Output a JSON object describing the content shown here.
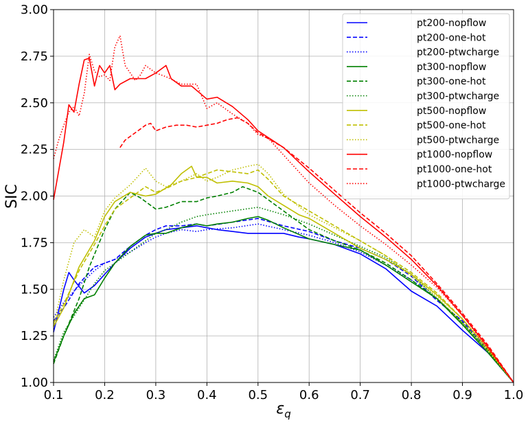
{
  "chart_data": {
    "type": "line",
    "title": "",
    "xlabel": "ε",
    "xlabel_sub": "q",
    "ylabel": "SIC",
    "xlim": [
      0.1,
      1.0
    ],
    "ylim": [
      1.0,
      3.0
    ],
    "xticks": [
      0.1,
      0.2,
      0.3,
      0.4,
      0.5,
      0.6,
      0.7,
      0.8,
      0.9,
      1.0
    ],
    "xtick_labels": [
      "0.1",
      "0.2",
      "0.3",
      "0.4",
      "0.5",
      "0.6",
      "0.7",
      "0.8",
      "0.9",
      "1.0"
    ],
    "yticks": [
      1.0,
      1.25,
      1.5,
      1.75,
      2.0,
      2.25,
      2.5,
      2.75,
      3.0
    ],
    "ytick_labels": [
      "1.00",
      "1.25",
      "1.50",
      "1.75",
      "2.00",
      "2.25",
      "2.50",
      "2.75",
      "3.00"
    ],
    "grid": true,
    "legend_position": "top-right",
    "series": [
      {
        "name": "pt200-nopflow",
        "color": "#0000ff",
        "dash": "solid",
        "x": [
          0.1,
          0.12,
          0.13,
          0.14,
          0.16,
          0.18,
          0.2,
          0.22,
          0.25,
          0.28,
          0.3,
          0.32,
          0.35,
          0.38,
          0.4,
          0.42,
          0.45,
          0.48,
          0.5,
          0.52,
          0.55,
          0.58,
          0.6,
          0.65,
          0.7,
          0.75,
          0.8,
          0.85,
          0.9,
          0.95,
          1.0
        ],
        "y": [
          1.27,
          1.5,
          1.59,
          1.55,
          1.48,
          1.52,
          1.58,
          1.64,
          1.72,
          1.78,
          1.8,
          1.82,
          1.83,
          1.84,
          1.83,
          1.82,
          1.81,
          1.8,
          1.8,
          1.8,
          1.8,
          1.78,
          1.77,
          1.74,
          1.69,
          1.61,
          1.49,
          1.41,
          1.28,
          1.16,
          1.0
        ]
      },
      {
        "name": "pt200-one-hot",
        "color": "#0000ff",
        "dash": "dashed",
        "x": [
          0.1,
          0.12,
          0.15,
          0.18,
          0.2,
          0.22,
          0.25,
          0.28,
          0.3,
          0.32,
          0.35,
          0.38,
          0.4,
          0.45,
          0.5,
          0.55,
          0.6,
          0.65,
          0.7,
          0.75,
          0.8,
          0.85,
          0.9,
          0.95,
          1.0
        ],
        "y": [
          1.33,
          1.4,
          1.53,
          1.62,
          1.64,
          1.66,
          1.73,
          1.79,
          1.82,
          1.84,
          1.84,
          1.85,
          1.84,
          1.86,
          1.88,
          1.84,
          1.81,
          1.76,
          1.72,
          1.66,
          1.57,
          1.44,
          1.33,
          1.18,
          1.0
        ]
      },
      {
        "name": "pt200-ptwcharge",
        "color": "#0000ff",
        "dash": "dotted",
        "x": [
          0.1,
          0.12,
          0.15,
          0.18,
          0.2,
          0.22,
          0.25,
          0.28,
          0.3,
          0.32,
          0.35,
          0.38,
          0.4,
          0.45,
          0.5,
          0.55,
          0.6,
          0.65,
          0.7,
          0.75,
          0.8,
          0.85,
          0.9,
          0.95,
          1.0
        ],
        "y": [
          1.35,
          1.43,
          1.52,
          1.6,
          1.64,
          1.66,
          1.7,
          1.75,
          1.78,
          1.8,
          1.82,
          1.81,
          1.82,
          1.83,
          1.85,
          1.82,
          1.79,
          1.75,
          1.7,
          1.63,
          1.55,
          1.45,
          1.31,
          1.16,
          1.0
        ]
      },
      {
        "name": "pt300-nopflow",
        "color": "#008000",
        "dash": "solid",
        "x": [
          0.1,
          0.12,
          0.14,
          0.16,
          0.18,
          0.2,
          0.22,
          0.25,
          0.28,
          0.3,
          0.32,
          0.35,
          0.38,
          0.4,
          0.42,
          0.45,
          0.48,
          0.5,
          0.52,
          0.55,
          0.6,
          0.65,
          0.7,
          0.75,
          0.8,
          0.85,
          0.9,
          0.95,
          1.0
        ],
        "y": [
          1.11,
          1.25,
          1.37,
          1.45,
          1.47,
          1.56,
          1.64,
          1.73,
          1.79,
          1.8,
          1.8,
          1.83,
          1.85,
          1.84,
          1.85,
          1.86,
          1.88,
          1.89,
          1.87,
          1.83,
          1.77,
          1.74,
          1.71,
          1.63,
          1.54,
          1.45,
          1.31,
          1.16,
          1.0
        ]
      },
      {
        "name": "pt300-one-hot",
        "color": "#008000",
        "dash": "dashed",
        "x": [
          0.1,
          0.12,
          0.15,
          0.17,
          0.2,
          0.22,
          0.25,
          0.27,
          0.3,
          0.32,
          0.35,
          0.38,
          0.4,
          0.42,
          0.45,
          0.47,
          0.5,
          0.52,
          0.55,
          0.6,
          0.65,
          0.7,
          0.75,
          0.8,
          0.85,
          0.9,
          0.95,
          1.0
        ],
        "y": [
          1.1,
          1.25,
          1.45,
          1.62,
          1.82,
          1.93,
          2.02,
          1.99,
          1.93,
          1.94,
          1.97,
          1.97,
          1.99,
          2.0,
          2.02,
          2.05,
          2.02,
          1.98,
          1.92,
          1.82,
          1.76,
          1.71,
          1.64,
          1.55,
          1.45,
          1.32,
          1.17,
          1.0
        ]
      },
      {
        "name": "pt300-ptwcharge",
        "color": "#008000",
        "dash": "dotted",
        "x": [
          0.1,
          0.12,
          0.15,
          0.18,
          0.2,
          0.22,
          0.25,
          0.28,
          0.3,
          0.32,
          0.35,
          0.38,
          0.4,
          0.45,
          0.5,
          0.55,
          0.6,
          0.65,
          0.7,
          0.75,
          0.8,
          0.85,
          0.9,
          0.95,
          1.0
        ],
        "y": [
          1.12,
          1.27,
          1.4,
          1.53,
          1.6,
          1.64,
          1.7,
          1.76,
          1.8,
          1.82,
          1.86,
          1.89,
          1.9,
          1.92,
          1.94,
          1.9,
          1.85,
          1.79,
          1.73,
          1.67,
          1.58,
          1.45,
          1.32,
          1.17,
          1.0
        ]
      },
      {
        "name": "pt500-nopflow",
        "color": "#bfbf00",
        "dash": "solid",
        "x": [
          0.1,
          0.12,
          0.15,
          0.18,
          0.2,
          0.22,
          0.25,
          0.28,
          0.3,
          0.33,
          0.35,
          0.37,
          0.38,
          0.4,
          0.42,
          0.45,
          0.48,
          0.5,
          0.52,
          0.55,
          0.58,
          0.6,
          0.65,
          0.7,
          0.75,
          0.8,
          0.85,
          0.9,
          0.95,
          1.0
        ],
        "y": [
          1.3,
          1.4,
          1.62,
          1.76,
          1.89,
          1.97,
          2.02,
          2.0,
          2.01,
          2.06,
          2.12,
          2.16,
          2.1,
          2.1,
          2.07,
          2.08,
          2.07,
          2.05,
          2.0,
          1.95,
          1.9,
          1.88,
          1.8,
          1.72,
          1.66,
          1.58,
          1.47,
          1.34,
          1.18,
          1.0
        ]
      },
      {
        "name": "pt500-one-hot",
        "color": "#bfbf00",
        "dash": "dashed",
        "x": [
          0.1,
          0.12,
          0.15,
          0.18,
          0.2,
          0.22,
          0.25,
          0.28,
          0.3,
          0.32,
          0.35,
          0.38,
          0.4,
          0.42,
          0.45,
          0.48,
          0.5,
          0.52,
          0.55,
          0.6,
          0.65,
          0.7,
          0.75,
          0.8,
          0.85,
          0.9,
          0.95,
          1.0
        ],
        "y": [
          1.32,
          1.42,
          1.6,
          1.74,
          1.84,
          1.93,
          1.99,
          2.05,
          2.02,
          2.04,
          2.08,
          2.1,
          2.12,
          2.14,
          2.13,
          2.12,
          2.14,
          2.09,
          2.0,
          1.92,
          1.84,
          1.76,
          1.68,
          1.59,
          1.48,
          1.34,
          1.18,
          1.0
        ]
      },
      {
        "name": "pt500-ptwcharge",
        "color": "#bfbf00",
        "dash": "dotted",
        "x": [
          0.1,
          0.12,
          0.14,
          0.16,
          0.18,
          0.2,
          0.22,
          0.25,
          0.28,
          0.3,
          0.32,
          0.35,
          0.38,
          0.4,
          0.42,
          0.45,
          0.48,
          0.5,
          0.52,
          0.55,
          0.6,
          0.65,
          0.7,
          0.75,
          0.8,
          0.85,
          0.9,
          0.95,
          1.0
        ],
        "y": [
          1.3,
          1.55,
          1.75,
          1.82,
          1.78,
          1.92,
          1.99,
          2.06,
          2.15,
          2.08,
          2.05,
          2.08,
          2.12,
          2.08,
          2.1,
          2.14,
          2.16,
          2.17,
          2.12,
          2.01,
          1.9,
          1.83,
          1.76,
          1.68,
          1.57,
          1.46,
          1.32,
          1.17,
          1.0
        ]
      },
      {
        "name": "pt1000-nopflow",
        "color": "#ff0000",
        "dash": "solid",
        "x": [
          0.1,
          0.12,
          0.13,
          0.14,
          0.15,
          0.16,
          0.17,
          0.18,
          0.19,
          0.2,
          0.21,
          0.22,
          0.23,
          0.25,
          0.28,
          0.3,
          0.32,
          0.33,
          0.35,
          0.37,
          0.4,
          0.42,
          0.45,
          0.48,
          0.5,
          0.55,
          0.6,
          0.65,
          0.7,
          0.75,
          0.8,
          0.85,
          0.9,
          0.95,
          1.0
        ],
        "y": [
          1.98,
          2.29,
          2.49,
          2.45,
          2.6,
          2.73,
          2.74,
          2.59,
          2.7,
          2.66,
          2.7,
          2.57,
          2.6,
          2.63,
          2.63,
          2.66,
          2.7,
          2.63,
          2.59,
          2.59,
          2.52,
          2.53,
          2.48,
          2.41,
          2.35,
          2.26,
          2.13,
          2.01,
          1.89,
          1.78,
          1.66,
          1.52,
          1.36,
          1.19,
          1.0
        ]
      },
      {
        "name": "pt1000-one-hot",
        "color": "#ff0000",
        "dash": "dashed",
        "x": [
          0.23,
          0.24,
          0.25,
          0.27,
          0.28,
          0.29,
          0.3,
          0.32,
          0.34,
          0.36,
          0.38,
          0.4,
          0.42,
          0.44,
          0.46,
          0.48,
          0.5,
          0.55,
          0.6,
          0.65,
          0.7,
          0.75,
          0.8,
          0.85,
          0.9,
          0.95,
          1.0
        ],
        "y": [
          2.26,
          2.3,
          2.32,
          2.36,
          2.38,
          2.39,
          2.35,
          2.37,
          2.38,
          2.38,
          2.37,
          2.38,
          2.39,
          2.41,
          2.42,
          2.39,
          2.34,
          2.26,
          2.15,
          2.03,
          1.91,
          1.8,
          1.68,
          1.53,
          1.37,
          1.2,
          1.0
        ]
      },
      {
        "name": "pt1000-ptwcharge",
        "color": "#ff0000",
        "dash": "dotted",
        "x": [
          0.1,
          0.11,
          0.12,
          0.13,
          0.14,
          0.15,
          0.16,
          0.17,
          0.18,
          0.19,
          0.2,
          0.21,
          0.22,
          0.23,
          0.24,
          0.25,
          0.26,
          0.27,
          0.28,
          0.3,
          0.32,
          0.35,
          0.38,
          0.4,
          0.42,
          0.45,
          0.48,
          0.5,
          0.52,
          0.55,
          0.6,
          0.65,
          0.7,
          0.75,
          0.8,
          0.85,
          0.9,
          0.95,
          1.0
        ],
        "y": [
          2.2,
          2.3,
          2.38,
          2.45,
          2.48,
          2.43,
          2.55,
          2.76,
          2.67,
          2.64,
          2.65,
          2.62,
          2.8,
          2.86,
          2.7,
          2.66,
          2.62,
          2.65,
          2.7,
          2.66,
          2.64,
          2.6,
          2.6,
          2.47,
          2.5,
          2.44,
          2.39,
          2.33,
          2.31,
          2.22,
          2.07,
          1.95,
          1.84,
          1.74,
          1.63,
          1.51,
          1.36,
          1.18,
          1.0
        ]
      }
    ]
  }
}
